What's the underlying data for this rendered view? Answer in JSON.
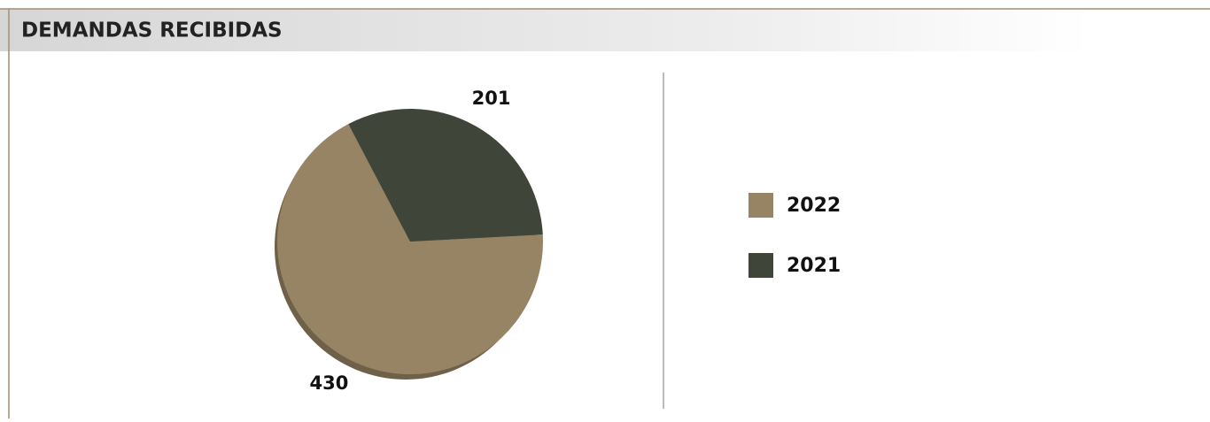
{
  "chart_data": {
    "type": "pie",
    "title": "DEMANDAS RECIBIDAS",
    "categories": [
      "2022",
      "2021"
    ],
    "values": [
      430,
      201
    ],
    "colors": [
      "#978465",
      "#3f4539"
    ],
    "legend": "right"
  }
}
